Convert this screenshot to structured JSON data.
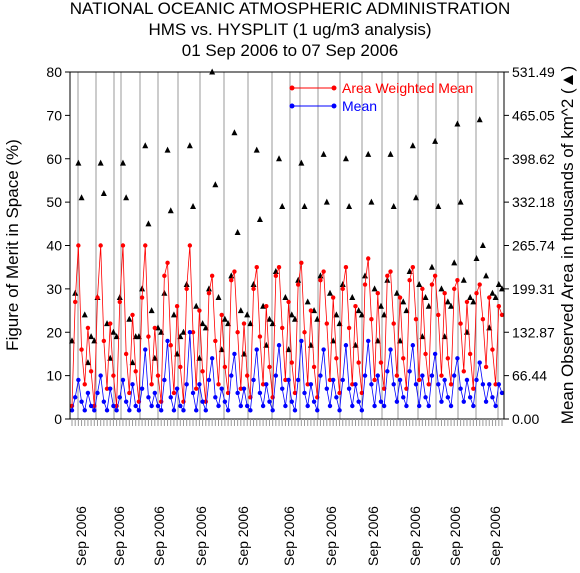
{
  "chart_data": {
    "type": "scatter",
    "title_lines": [
      "NATIONAL OCEANIC ATMOSPHERIC ADMINISTRATION",
      "HMS vs. HYSPLIT (1 ug/m3 analysis)",
      "01 Sep 2006 to 07 Sep 2006"
    ],
    "ylabel_left": "Figure of Merit in Space (%)",
    "ylabel_right": "Mean Observed Area in thousands of km^2 (▲)",
    "ylim_left": [
      0,
      80
    ],
    "ylim_right": [
      0,
      531.49
    ],
    "yticks_left": [
      "0",
      "10",
      "20",
      "30",
      "40",
      "50",
      "60",
      "70",
      "80"
    ],
    "yticks_right": [
      "0.00",
      "66.44",
      "132.87",
      "199.31",
      "265.74",
      "332.18",
      "398.62",
      "465.05",
      "531.49"
    ],
    "xtick_label": "Sep 2006",
    "grid": "vertical lines only",
    "legend_position": "top-right",
    "colors": {
      "area_weighted_mean": "#ff0000",
      "mean": "#0000ff",
      "observed_area": "#000000",
      "grid": "#999999"
    },
    "series": [
      {
        "name": "Area Weighted Mean",
        "color": "#ff0000",
        "values": [
          3,
          27,
          40,
          16,
          8,
          21,
          11,
          3,
          28,
          40,
          18,
          7,
          22,
          10,
          3,
          27,
          40,
          15,
          6,
          24,
          11,
          4,
          28,
          40,
          19,
          8,
          21,
          10,
          4,
          33,
          36,
          17,
          6,
          26,
          12,
          4,
          30,
          40,
          20,
          7,
          25,
          11,
          4,
          29,
          33,
          18,
          8,
          24,
          12,
          6,
          32,
          34,
          20,
          7,
          22,
          10,
          5,
          30,
          35,
          19,
          8,
          26,
          12,
          5,
          33,
          35,
          21,
          9,
          27,
          13,
          6,
          31,
          36,
          20,
          8,
          25,
          12,
          5,
          32,
          34,
          22,
          9,
          28,
          14,
          6,
          30,
          35,
          21,
          8,
          26,
          13,
          6,
          31,
          37,
          23,
          9,
          29,
          13,
          7,
          33,
          34,
          22,
          10,
          28,
          14,
          7,
          32,
          35,
          23,
          9,
          30,
          15,
          8,
          31,
          33,
          24,
          10,
          29,
          14,
          8,
          30,
          32,
          22,
          11,
          27,
          15,
          7,
          29,
          31,
          23,
          12,
          28,
          16,
          8,
          26,
          24
        ]
      },
      {
        "name": "Mean",
        "color": "#0000ff",
        "values": [
          2,
          5,
          9,
          4,
          2,
          6,
          3,
          2,
          6,
          10,
          4,
          2,
          7,
          3,
          2,
          5,
          9,
          4,
          2,
          8,
          3,
          2,
          7,
          16,
          5,
          3,
          6,
          3,
          2,
          9,
          18,
          5,
          2,
          7,
          3,
          2,
          8,
          20,
          6,
          2,
          8,
          4,
          2,
          9,
          14,
          5,
          3,
          7,
          4,
          2,
          10,
          15,
          6,
          3,
          7,
          3,
          2,
          9,
          16,
          6,
          3,
          8,
          4,
          2,
          10,
          17,
          7,
          3,
          9,
          4,
          2,
          9,
          18,
          6,
          3,
          8,
          4,
          2,
          10,
          16,
          7,
          3,
          9,
          5,
          2,
          9,
          17,
          7,
          3,
          8,
          4,
          2,
          10,
          18,
          8,
          3,
          10,
          4,
          3,
          11,
          16,
          8,
          4,
          9,
          5,
          3,
          11,
          17,
          8,
          3,
          10,
          5,
          3,
          10,
          15,
          8,
          4,
          9,
          5,
          3,
          10,
          14,
          7,
          4,
          9,
          5,
          3,
          9,
          13,
          8,
          4,
          8,
          5,
          3,
          8,
          6
        ]
      },
      {
        "name": "Observed Area",
        "color": "#000000",
        "values_percent_scale": [
          18,
          29,
          59,
          51,
          24,
          13,
          19,
          18,
          28,
          59,
          52,
          22,
          14,
          20,
          19,
          28,
          59,
          51,
          23,
          13,
          19,
          19,
          30,
          63,
          45,
          25,
          14,
          21,
          20,
          29,
          62,
          48,
          24,
          15,
          19,
          20,
          31,
          63,
          49,
          26,
          14,
          22,
          21,
          30,
          80,
          54,
          28,
          16,
          23,
          22,
          33,
          66,
          43,
          25,
          15,
          24,
          22,
          31,
          62,
          46,
          26,
          17,
          23,
          22,
          34,
          60,
          49,
          28,
          16,
          24,
          23,
          32,
          59,
          49,
          27,
          17,
          25,
          23,
          33,
          61,
          50,
          29,
          18,
          24,
          22,
          31,
          60,
          49,
          28,
          17,
          25,
          24,
          33,
          61,
          50,
          30,
          18,
          26,
          24,
          32,
          61,
          49,
          29,
          18,
          27,
          25,
          34,
          63,
          51,
          31,
          19,
          28,
          26,
          35,
          64,
          49,
          30,
          19,
          27,
          26,
          36,
          68,
          50,
          32,
          20,
          28,
          27,
          37,
          69,
          40,
          33,
          21,
          29,
          28,
          31,
          30
        ]
      }
    ]
  }
}
